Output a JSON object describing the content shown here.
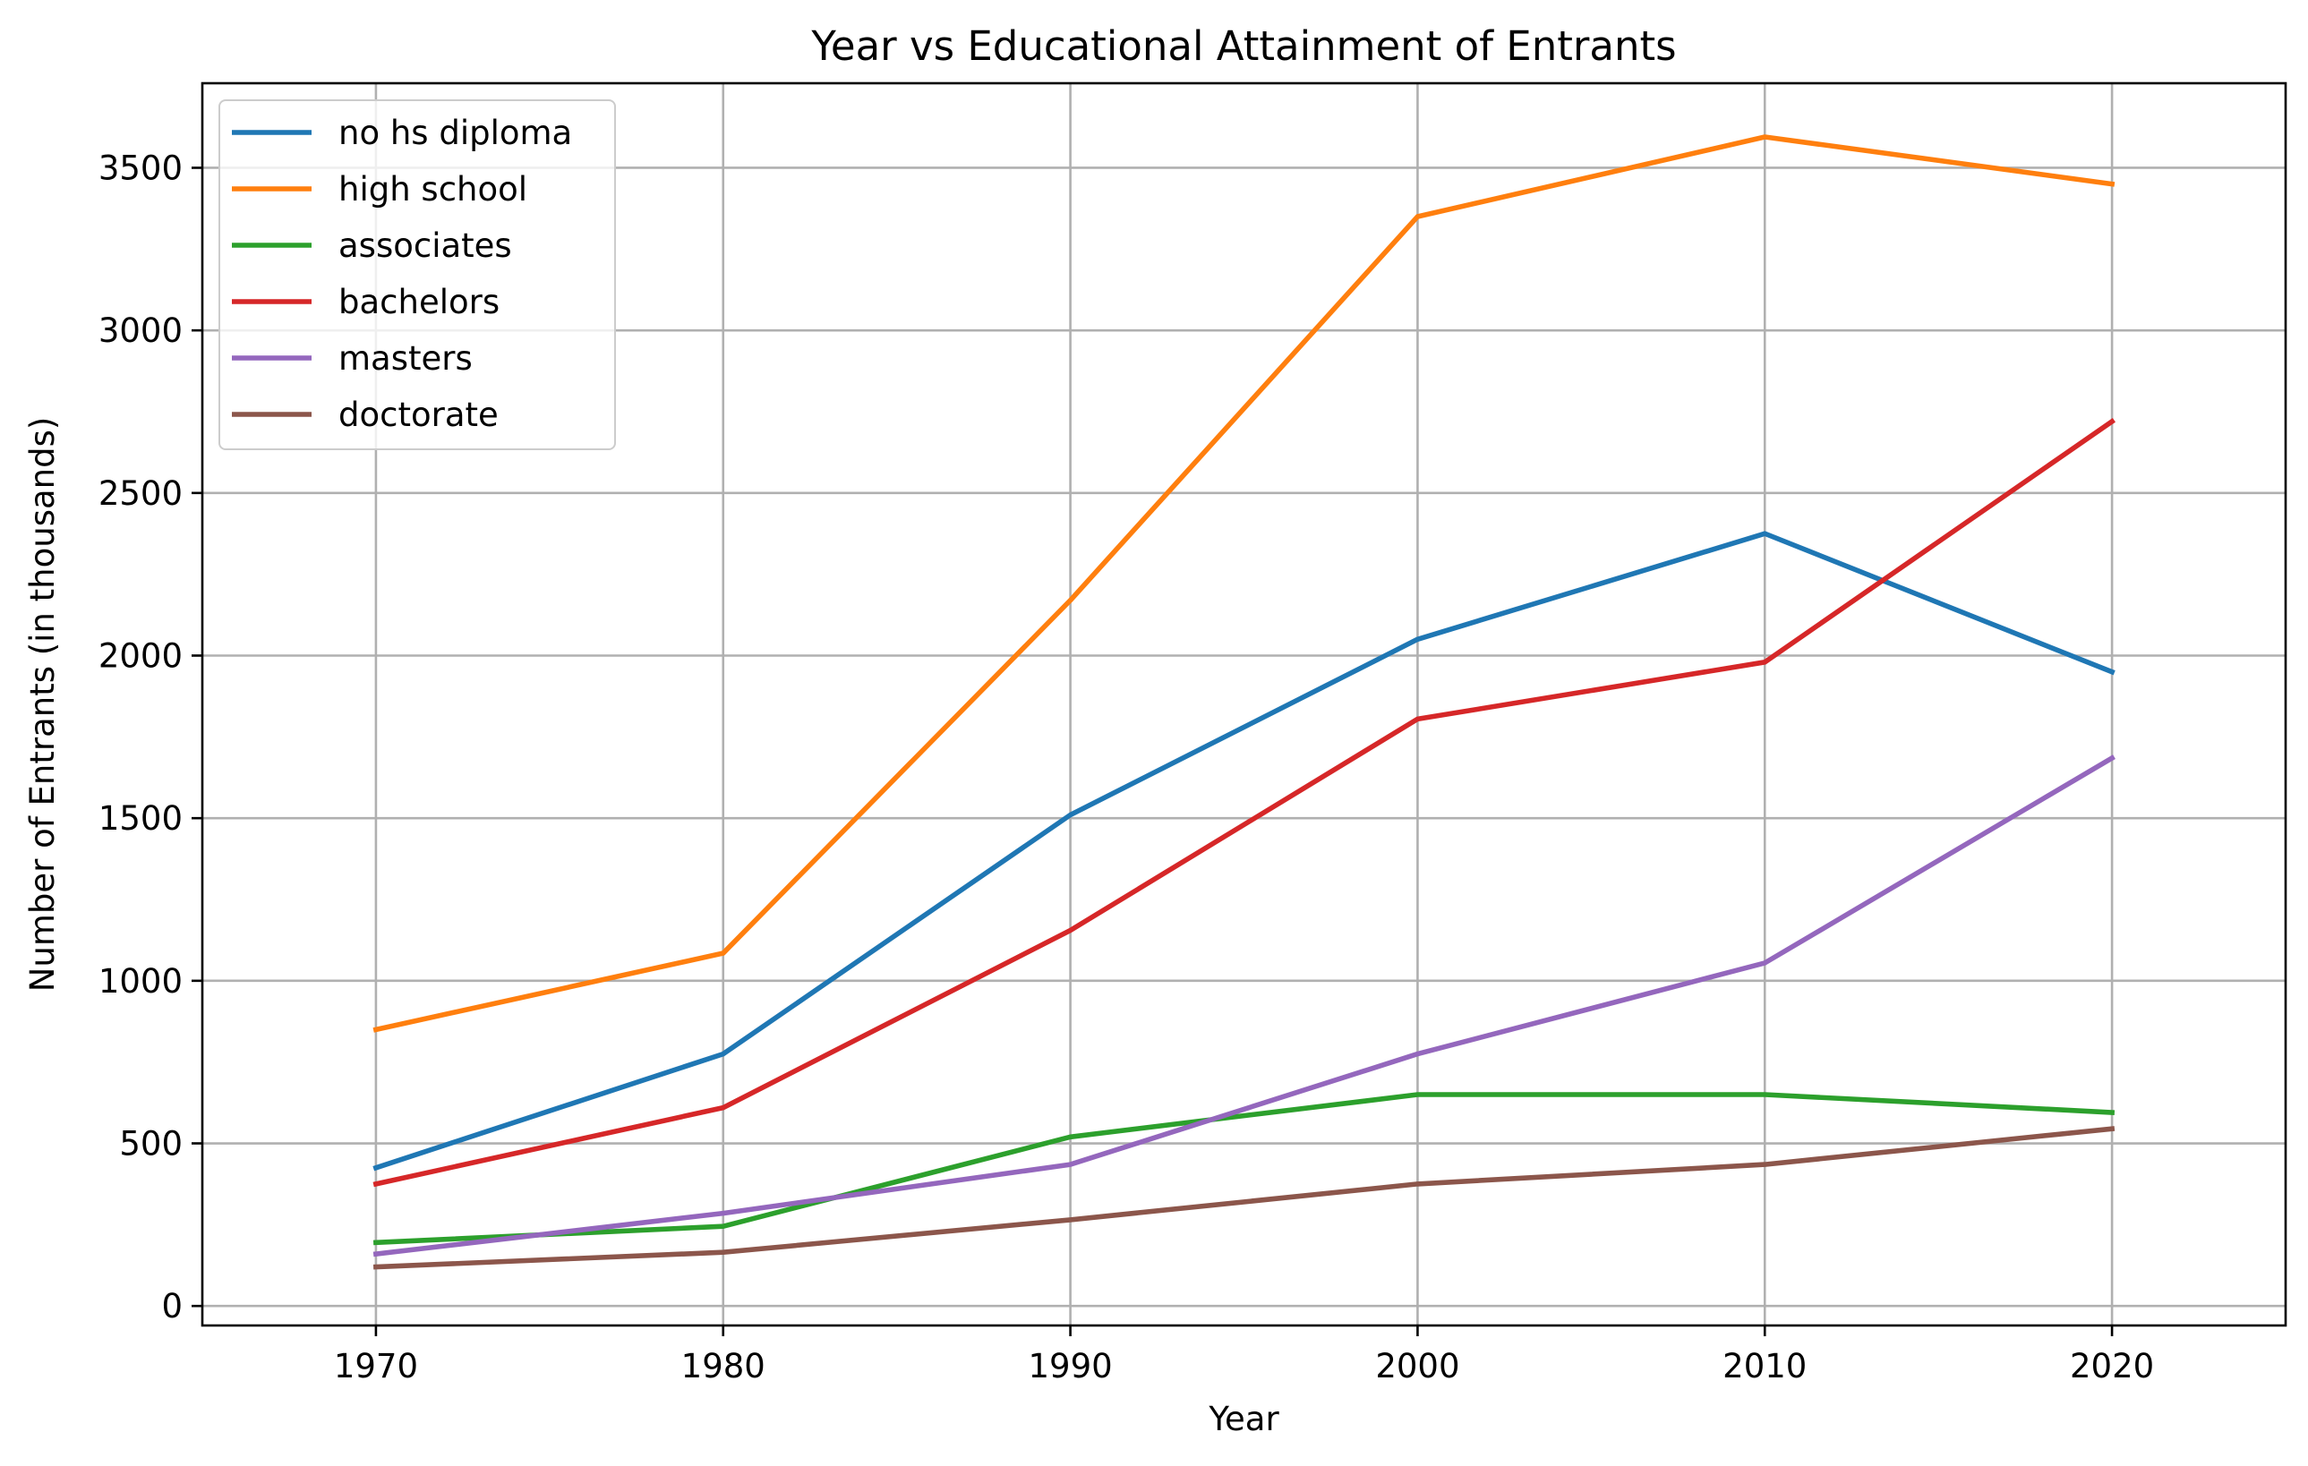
{
  "chart_data": {
    "type": "line",
    "title": "Year vs Educational Attainment of Entrants",
    "xlabel": "Year",
    "ylabel": "Number of Entrants (in thousands)",
    "x": [
      1970,
      1980,
      1990,
      2000,
      2010,
      2020
    ],
    "xlim": [
      1965,
      2025
    ],
    "ylim": [
      -60,
      3760
    ],
    "xticks": [
      1970,
      1980,
      1990,
      2000,
      2010,
      2020
    ],
    "yticks": [
      0,
      500,
      1000,
      1500,
      2000,
      2500,
      3000,
      3500
    ],
    "grid": true,
    "legend_position": "upper left",
    "series": [
      {
        "name": "no hs diploma",
        "color": "#1f77b4",
        "values": [
          425,
          775,
          1510,
          2050,
          2375,
          1950
        ]
      },
      {
        "name": "high school",
        "color": "#ff7f0e",
        "values": [
          850,
          1085,
          2170,
          3350,
          3595,
          3450
        ]
      },
      {
        "name": "associates",
        "color": "#2ca02c",
        "values": [
          195,
          245,
          520,
          650,
          650,
          595
        ]
      },
      {
        "name": "bachelors",
        "color": "#d62728",
        "values": [
          375,
          610,
          1155,
          1805,
          1980,
          2720
        ]
      },
      {
        "name": "masters",
        "color": "#9467bd",
        "values": [
          160,
          285,
          435,
          775,
          1055,
          1685
        ]
      },
      {
        "name": "doctorate",
        "color": "#8c564b",
        "values": [
          120,
          165,
          265,
          375,
          435,
          545
        ]
      }
    ]
  }
}
